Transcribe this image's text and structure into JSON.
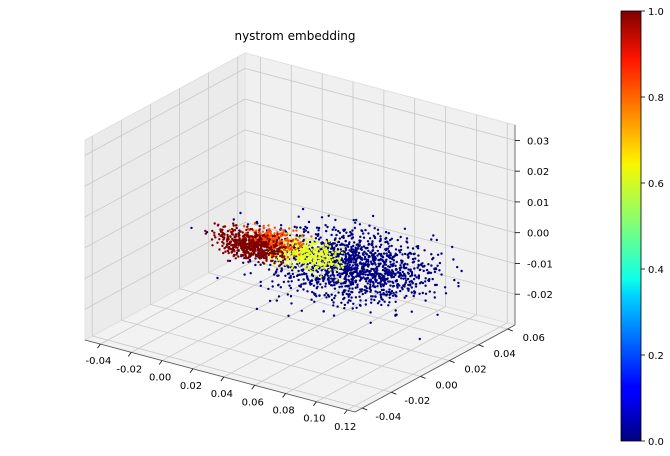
{
  "chart_data": {
    "type": "scatter",
    "projection": "3d",
    "title": "nystrom embedding",
    "xlabel": "",
    "ylabel": "",
    "zlabel": "",
    "xlim": [
      -0.05,
      0.125
    ],
    "ylim": [
      -0.045,
      0.065
    ],
    "zlim": [
      -0.03,
      0.035
    ],
    "x_ticks": [
      "-0.04",
      "-0.02",
      "0.00",
      "0.02",
      "0.04",
      "0.06",
      "0.08",
      "0.10",
      "0.12"
    ],
    "y_ticks": [
      "-0.04",
      "-0.02",
      "0.00",
      "0.02",
      "0.04",
      "0.06"
    ],
    "z_ticks": [
      "-0.02",
      "-0.01",
      "0.00",
      "0.01",
      "0.02",
      "0.03"
    ],
    "grid": true,
    "colormap": "jet",
    "colorbar": {
      "range": [
        0.0,
        1.0
      ],
      "ticks": [
        "0.0",
        "0.2",
        "0.4",
        "0.6",
        "0.8",
        "1.0"
      ]
    },
    "clusters": [
      {
        "color_value": 0.0,
        "center": [
          0.06,
          0.02,
          -0.008
        ],
        "spread": [
          0.025,
          0.012,
          0.004
        ],
        "approx_points": 1500
      },
      {
        "color_value": 0.6,
        "center": [
          0.04,
          0.01,
          -0.004
        ],
        "spread": [
          0.012,
          0.005,
          0.0015
        ],
        "approx_points": 400
      },
      {
        "color_value": 0.8,
        "center": [
          0.02,
          0.008,
          -0.002
        ],
        "spread": [
          0.008,
          0.004,
          0.0015
        ],
        "approx_points": 250
      },
      {
        "color_value": 1.0,
        "center": [
          0.01,
          0.005,
          -0.004
        ],
        "spread": [
          0.01,
          0.003,
          0.002
        ],
        "approx_points": 500
      }
    ]
  }
}
